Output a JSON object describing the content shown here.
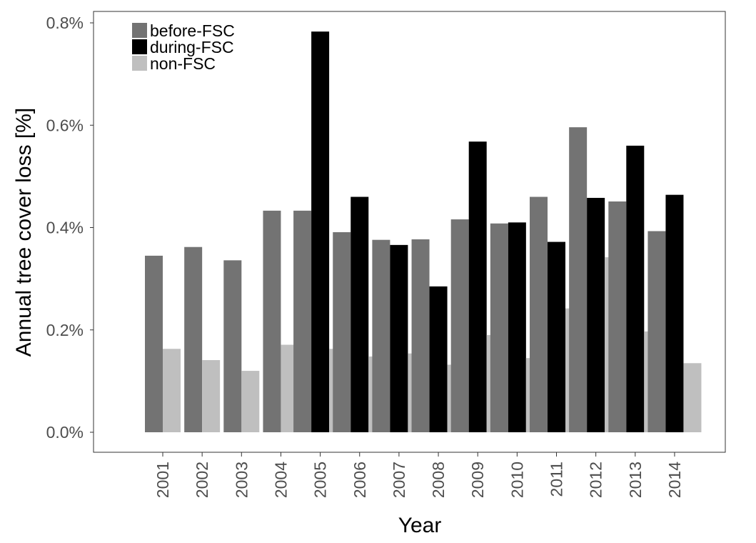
{
  "chart_data": {
    "type": "bar",
    "xlabel": "Year",
    "ylabel": "Annual tree cover loss [%]",
    "ylim": [
      0,
      0.8
    ],
    "yticks": [
      0.0,
      0.2,
      0.4,
      0.6,
      0.8
    ],
    "ytick_labels": [
      "0.0%",
      "0.2%",
      "0.4%",
      "0.6%",
      "0.8%"
    ],
    "grid": false,
    "legend_position": "top-left",
    "categories": [
      "2001",
      "2002",
      "2003",
      "2004",
      "2005",
      "2006",
      "2007",
      "2008",
      "2009",
      "2010",
      "2011",
      "2012",
      "2013",
      "2014"
    ],
    "series": [
      {
        "name": "before-FSC",
        "color": "#737373",
        "values": [
          0.345,
          0.362,
          0.336,
          0.433,
          0.433,
          0.391,
          0.376,
          0.377,
          0.416,
          0.408,
          0.46,
          0.596,
          0.451,
          0.393
        ]
      },
      {
        "name": "during-FSC",
        "color": "#000000",
        "values": [
          null,
          null,
          null,
          null,
          0.783,
          0.46,
          0.366,
          0.285,
          0.568,
          0.41,
          0.372,
          0.458,
          0.56,
          0.464
        ]
      },
      {
        "name": "non-FSC",
        "color": "#bfbfbf",
        "values": [
          0.163,
          0.141,
          0.12,
          0.171,
          0.163,
          0.148,
          0.154,
          0.132,
          0.19,
          0.145,
          0.242,
          0.342,
          0.197,
          0.135
        ]
      }
    ]
  }
}
